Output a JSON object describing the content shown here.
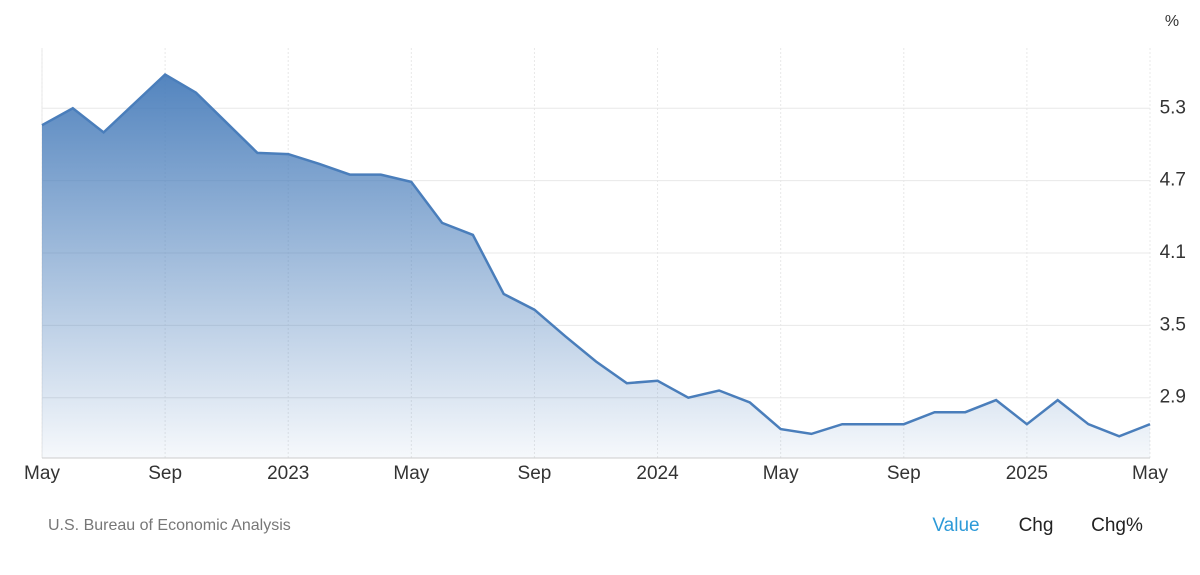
{
  "chart_data": {
    "type": "area",
    "unit": "%",
    "categories": [
      "May",
      null,
      null,
      null,
      "Sep",
      null,
      null,
      null,
      "2023",
      null,
      null,
      null,
      "May",
      null,
      null,
      null,
      "Sep",
      null,
      null,
      null,
      "2024",
      null,
      null,
      null,
      "May",
      null,
      null,
      null,
      "Sep",
      null,
      null,
      null,
      "2025",
      null,
      null,
      null,
      "May"
    ],
    "values": [
      5.16,
      5.3,
      5.1,
      5.34,
      5.58,
      5.43,
      5.18,
      4.93,
      4.92,
      4.84,
      4.75,
      4.75,
      4.69,
      4.35,
      4.25,
      3.76,
      3.63,
      3.41,
      3.2,
      3.02,
      3.04,
      2.9,
      2.96,
      2.86,
      2.64,
      2.6,
      2.68,
      2.68,
      2.68,
      2.78,
      2.78,
      2.88,
      2.68,
      2.88,
      2.68,
      2.58,
      2.68
    ],
    "color": "#4a7ebb",
    "ylim": [
      2.4,
      5.8
    ],
    "yticks": [
      2.9,
      3.5,
      4.1,
      4.7,
      5.3
    ],
    "grid": true
  },
  "footer": {
    "source": "U.S. Bureau of Economic Analysis",
    "tabs": [
      "Value",
      "Chg",
      "Chg%"
    ],
    "active_tab": 0
  }
}
